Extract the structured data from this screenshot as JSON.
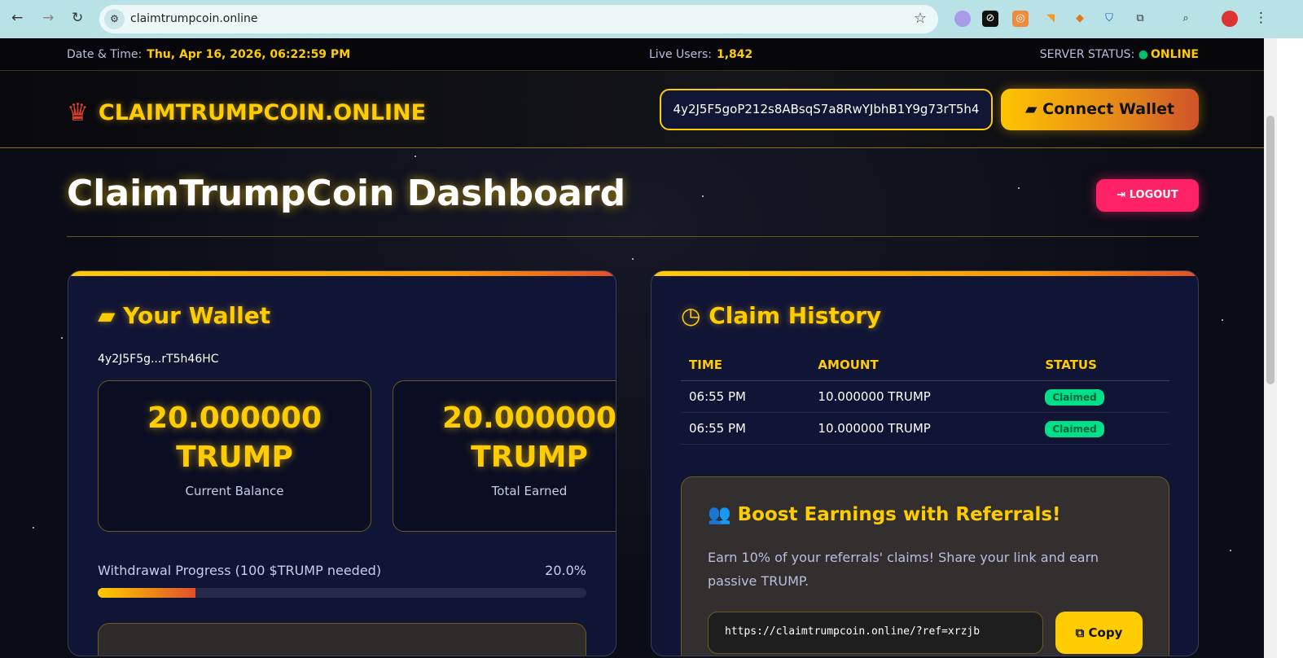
{
  "browser": {
    "url": "claimtrumpcoin.online"
  },
  "topbar": {
    "datetime_label": "Date & Time:",
    "datetime": "Thu, Apr 16, 2026, 06:22:59 PM",
    "users_label": "Live Users:",
    "users": "1,842",
    "status_label": "SERVER STATUS:",
    "status": "ONLINE",
    "status_color": "#00c070"
  },
  "header": {
    "logo": "CLAIMTRUMPCOIN.ONLINE",
    "wallet_input": "4y2J5F5goP212s8ABsqS7a8RwYJbhB1Y9g73rT5h4",
    "connect_label": "Connect Wallet"
  },
  "page": {
    "title": "ClaimTrumpCoin Dashboard",
    "logout": "LOGOUT"
  },
  "wallet": {
    "title": "Your Wallet",
    "address": "4y2J5F5g...rT5h46HC",
    "balance": "20.000000 TRUMP",
    "balance_label": "Current Balance",
    "earned": "20.000000 TRUMP",
    "earned_label": "Total Earned",
    "progress_label": "Withdrawal Progress (100 $TRUMP needed)",
    "progress_text": "20.0%",
    "progress": 0.2
  },
  "history": {
    "title": "Claim History",
    "columns": [
      "TIME",
      "AMOUNT",
      "STATUS"
    ],
    "rows": [
      {
        "time": "06:55 PM",
        "amount": "10.000000 TRUMP",
        "status": "Claimed"
      },
      {
        "time": "06:55 PM",
        "amount": "10.000000 TRUMP",
        "status": "Claimed"
      }
    ]
  },
  "referral": {
    "title": "Boost Earnings with Referrals!",
    "text": "Earn 10% of your referrals' claims! Share your link and earn passive TRUMP.",
    "link": "https://claimtrumpcoin.online/?ref=xrzjb",
    "copy": "Copy"
  }
}
